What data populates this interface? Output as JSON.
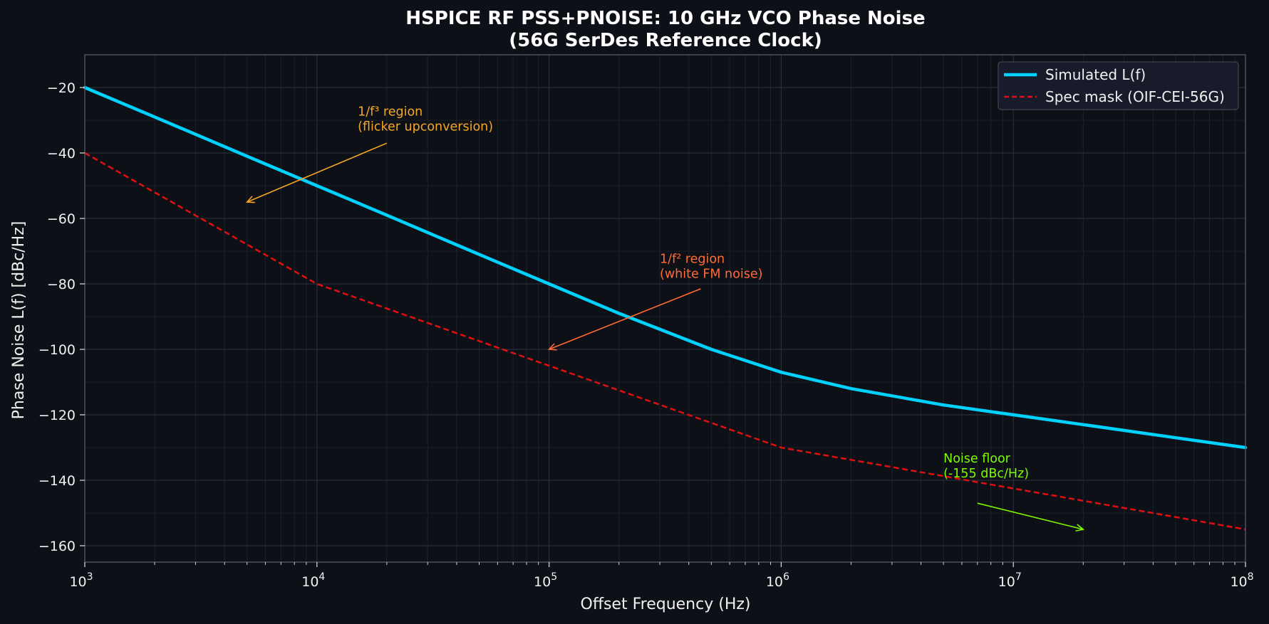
{
  "chart_data": {
    "type": "line",
    "title_line1": "HSPICE RF PSS+PNOISE: 10 GHz VCO Phase Noise",
    "title_line2": "(56G SerDes Reference Clock)",
    "xlabel": "Offset Frequency (Hz)",
    "ylabel": "Phase Noise L(f) [dBc/Hz]",
    "xscale": "log",
    "xlim": [
      1000,
      100000000
    ],
    "ylim": [
      -165,
      -10
    ],
    "x_ticks": [
      {
        "value": 1000,
        "base": "10",
        "exp": "3"
      },
      {
        "value": 10000,
        "base": "10",
        "exp": "4"
      },
      {
        "value": 100000,
        "base": "10",
        "exp": "5"
      },
      {
        "value": 1000000,
        "base": "10",
        "exp": "6"
      },
      {
        "value": 10000000,
        "base": "10",
        "exp": "7"
      },
      {
        "value": 100000000,
        "base": "10",
        "exp": "8"
      }
    ],
    "y_ticks": [
      -20,
      -40,
      -60,
      -80,
      -100,
      -120,
      -140,
      -160
    ],
    "y_tick_labels": [
      "−20",
      "−40",
      "−60",
      "−80",
      "−100",
      "−120",
      "−140",
      "−160"
    ],
    "grid": true,
    "legend_position": "top-right",
    "series": [
      {
        "name": "Simulated L(f)",
        "color": "#00d2ff",
        "style": "solid",
        "x": [
          1000,
          2000,
          5000,
          10000,
          20000,
          50000,
          100000,
          200000,
          500000,
          1000000,
          2000000,
          5000000,
          10000000,
          20000000,
          50000000,
          100000000
        ],
        "y": [
          -20,
          -29,
          -41,
          -50,
          -59,
          -71,
          -80,
          -89,
          -100,
          -107,
          -112,
          -117,
          -120,
          -123,
          -127,
          -130
        ]
      },
      {
        "name": "Spec mask (OIF-CEI-56G)",
        "color": "#e01010",
        "style": "dashed",
        "x": [
          1000,
          10000,
          1000000,
          100000000
        ],
        "y": [
          -40,
          -80,
          -130,
          -155
        ]
      }
    ],
    "annotations": [
      {
        "lines": [
          "1/f³ region",
          "(flicker upconversion)"
        ],
        "color": "#f5a623",
        "text_at": [
          15000,
          -34
        ],
        "arrow_from": [
          20000,
          -37
        ],
        "arrow_to": [
          5000,
          -55
        ]
      },
      {
        "lines": [
          "1/f² region",
          "(white FM noise)"
        ],
        "color": "#ff6b35",
        "text_at": [
          300000,
          -79
        ],
        "arrow_from": [
          450000,
          -81.5
        ],
        "arrow_to": [
          100000,
          -100
        ]
      },
      {
        "lines": [
          "Noise floor",
          "(-155 dBc/Hz)"
        ],
        "color": "#7cfc00",
        "text_at": [
          5000000,
          -140
        ],
        "arrow_from": [
          7000000,
          -147
        ],
        "arrow_to": [
          20000000,
          -155
        ]
      }
    ],
    "colors": {
      "background": "#0d1017",
      "plot_background": "#0d1017",
      "grid": "#2a2e36",
      "axis": "#555a63",
      "text": "#f0f0f0",
      "legend_background": "#181c2a"
    }
  }
}
